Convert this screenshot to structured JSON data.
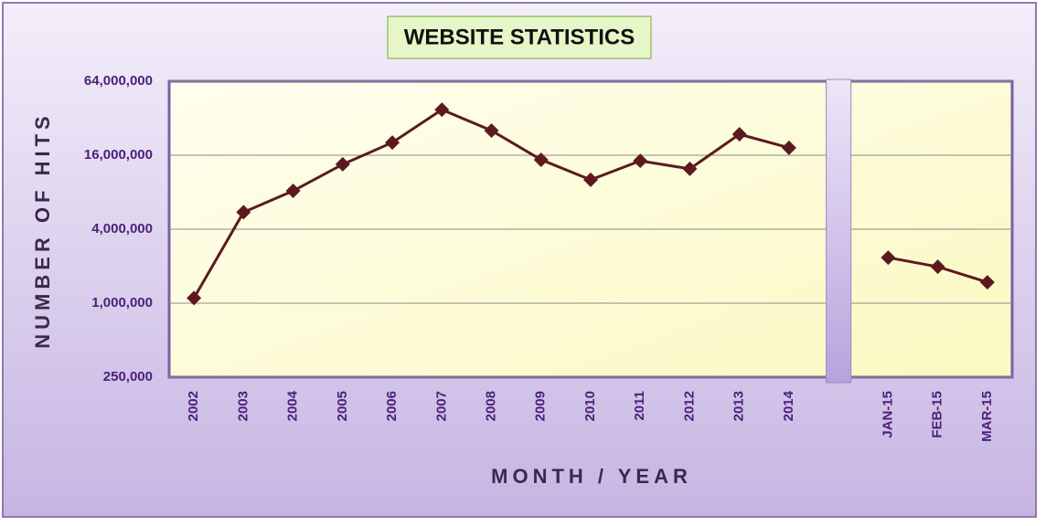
{
  "chart_data": {
    "type": "line",
    "title": "WEBSITE STATISTICS",
    "x_label": "MONTH / YEAR",
    "y_label": "NUMBER OF HITS",
    "categories": [
      "2002",
      "2003",
      "2004",
      "2005",
      "2006",
      "2007",
      "2008",
      "2009",
      "2010",
      "2011",
      "2012",
      "2013",
      "2014",
      null,
      "JAN-15",
      "FEB-15",
      "MAR-15"
    ],
    "values": [
      1100000,
      5500000,
      8200000,
      13500000,
      20300000,
      37600000,
      25400000,
      14700000,
      10100000,
      14400000,
      12400000,
      23700000,
      18400000,
      null,
      2350000,
      1980000,
      1480000
    ],
    "color": "#5c1a1f",
    "yscale": "log",
    "grid": true,
    "ylim": [
      250000,
      64000000
    ],
    "yticks": [
      {
        "value": 250000,
        "label": "250,000"
      },
      {
        "value": 1000000,
        "label": "1,000,000"
      },
      {
        "value": 4000000,
        "label": "4,000,000"
      },
      {
        "value": 16000000,
        "label": "16,000,000"
      },
      {
        "value": 64000000,
        "label": "64,000,000"
      }
    ]
  }
}
